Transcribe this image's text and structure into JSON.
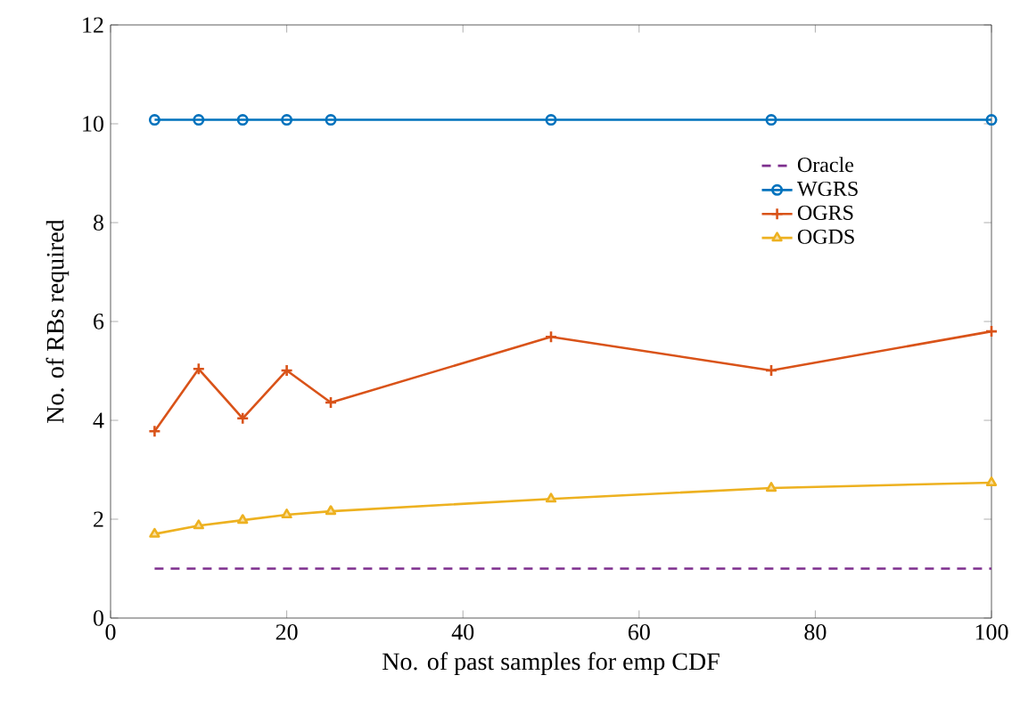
{
  "chart_data": {
    "type": "line",
    "xlabel": "No. of past samples for emp CDF",
    "ylabel": "No. of RBs required",
    "x": [
      5,
      10,
      15,
      20,
      25,
      50,
      75,
      100
    ],
    "series": [
      {
        "name": "Oracle",
        "color": "#7e2f8e",
        "marker": "none",
        "line_style": "dashed",
        "values": [
          1.0,
          1.0,
          1.0,
          1.0,
          1.0,
          1.0,
          1.0,
          1.0
        ]
      },
      {
        "name": "WGRS",
        "color": "#0072bd",
        "marker": "circle",
        "line_style": "solid",
        "values": [
          10.08,
          10.08,
          10.08,
          10.08,
          10.08,
          10.08,
          10.08,
          10.08
        ]
      },
      {
        "name": "OGRS",
        "color": "#d95319",
        "marker": "cross",
        "line_style": "solid",
        "values": [
          3.78,
          5.04,
          4.04,
          5.01,
          4.36,
          5.69,
          5.01,
          5.8
        ]
      },
      {
        "name": "OGDS",
        "color": "#edb120",
        "marker": "triangle",
        "line_style": "solid",
        "values": [
          1.7,
          1.87,
          1.98,
          2.09,
          2.16,
          2.41,
          2.63,
          2.74
        ]
      }
    ],
    "xlim": [
      0,
      100
    ],
    "ylim": [
      0,
      12
    ],
    "xticks": [
      0,
      20,
      40,
      60,
      80,
      100
    ],
    "yticks": [
      0,
      2,
      4,
      6,
      8,
      10,
      12
    ],
    "grid": false,
    "legend": "right"
  }
}
